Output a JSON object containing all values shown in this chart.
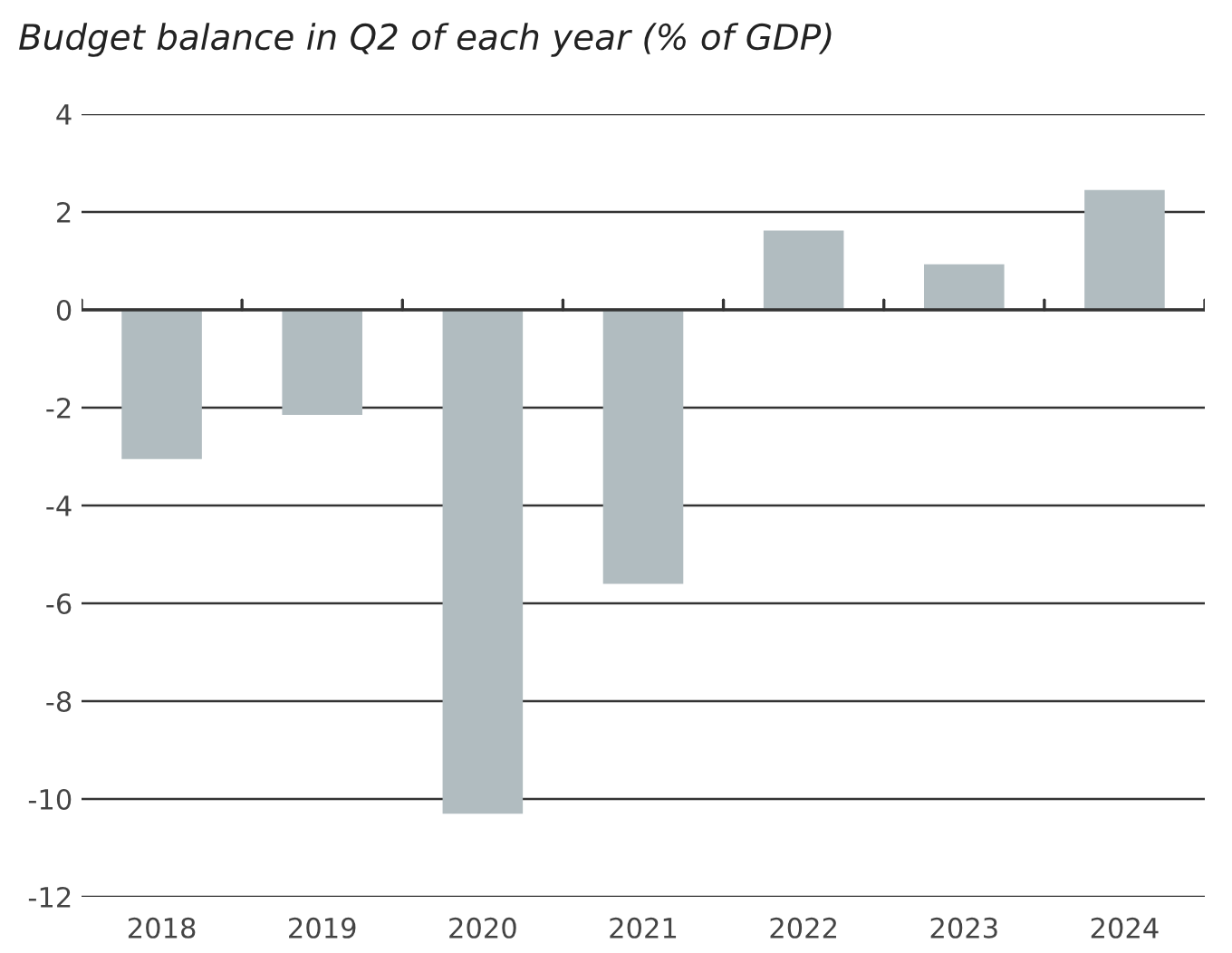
{
  "chart_data": {
    "type": "bar",
    "title": "Budget balance in Q2 of each year (% of GDP)",
    "categories": [
      "2018",
      "2019",
      "2020",
      "2021",
      "2022",
      "2023",
      "2024"
    ],
    "values": [
      -3.05,
      -2.15,
      -10.3,
      -5.6,
      1.62,
      0.93,
      2.45
    ],
    "color": "#b1bcc0",
    "ylim": [
      -12,
      4
    ],
    "yticks": [
      -12,
      -10,
      -8,
      -6,
      -4,
      -2,
      0,
      2,
      4
    ],
    "grid": "y"
  }
}
